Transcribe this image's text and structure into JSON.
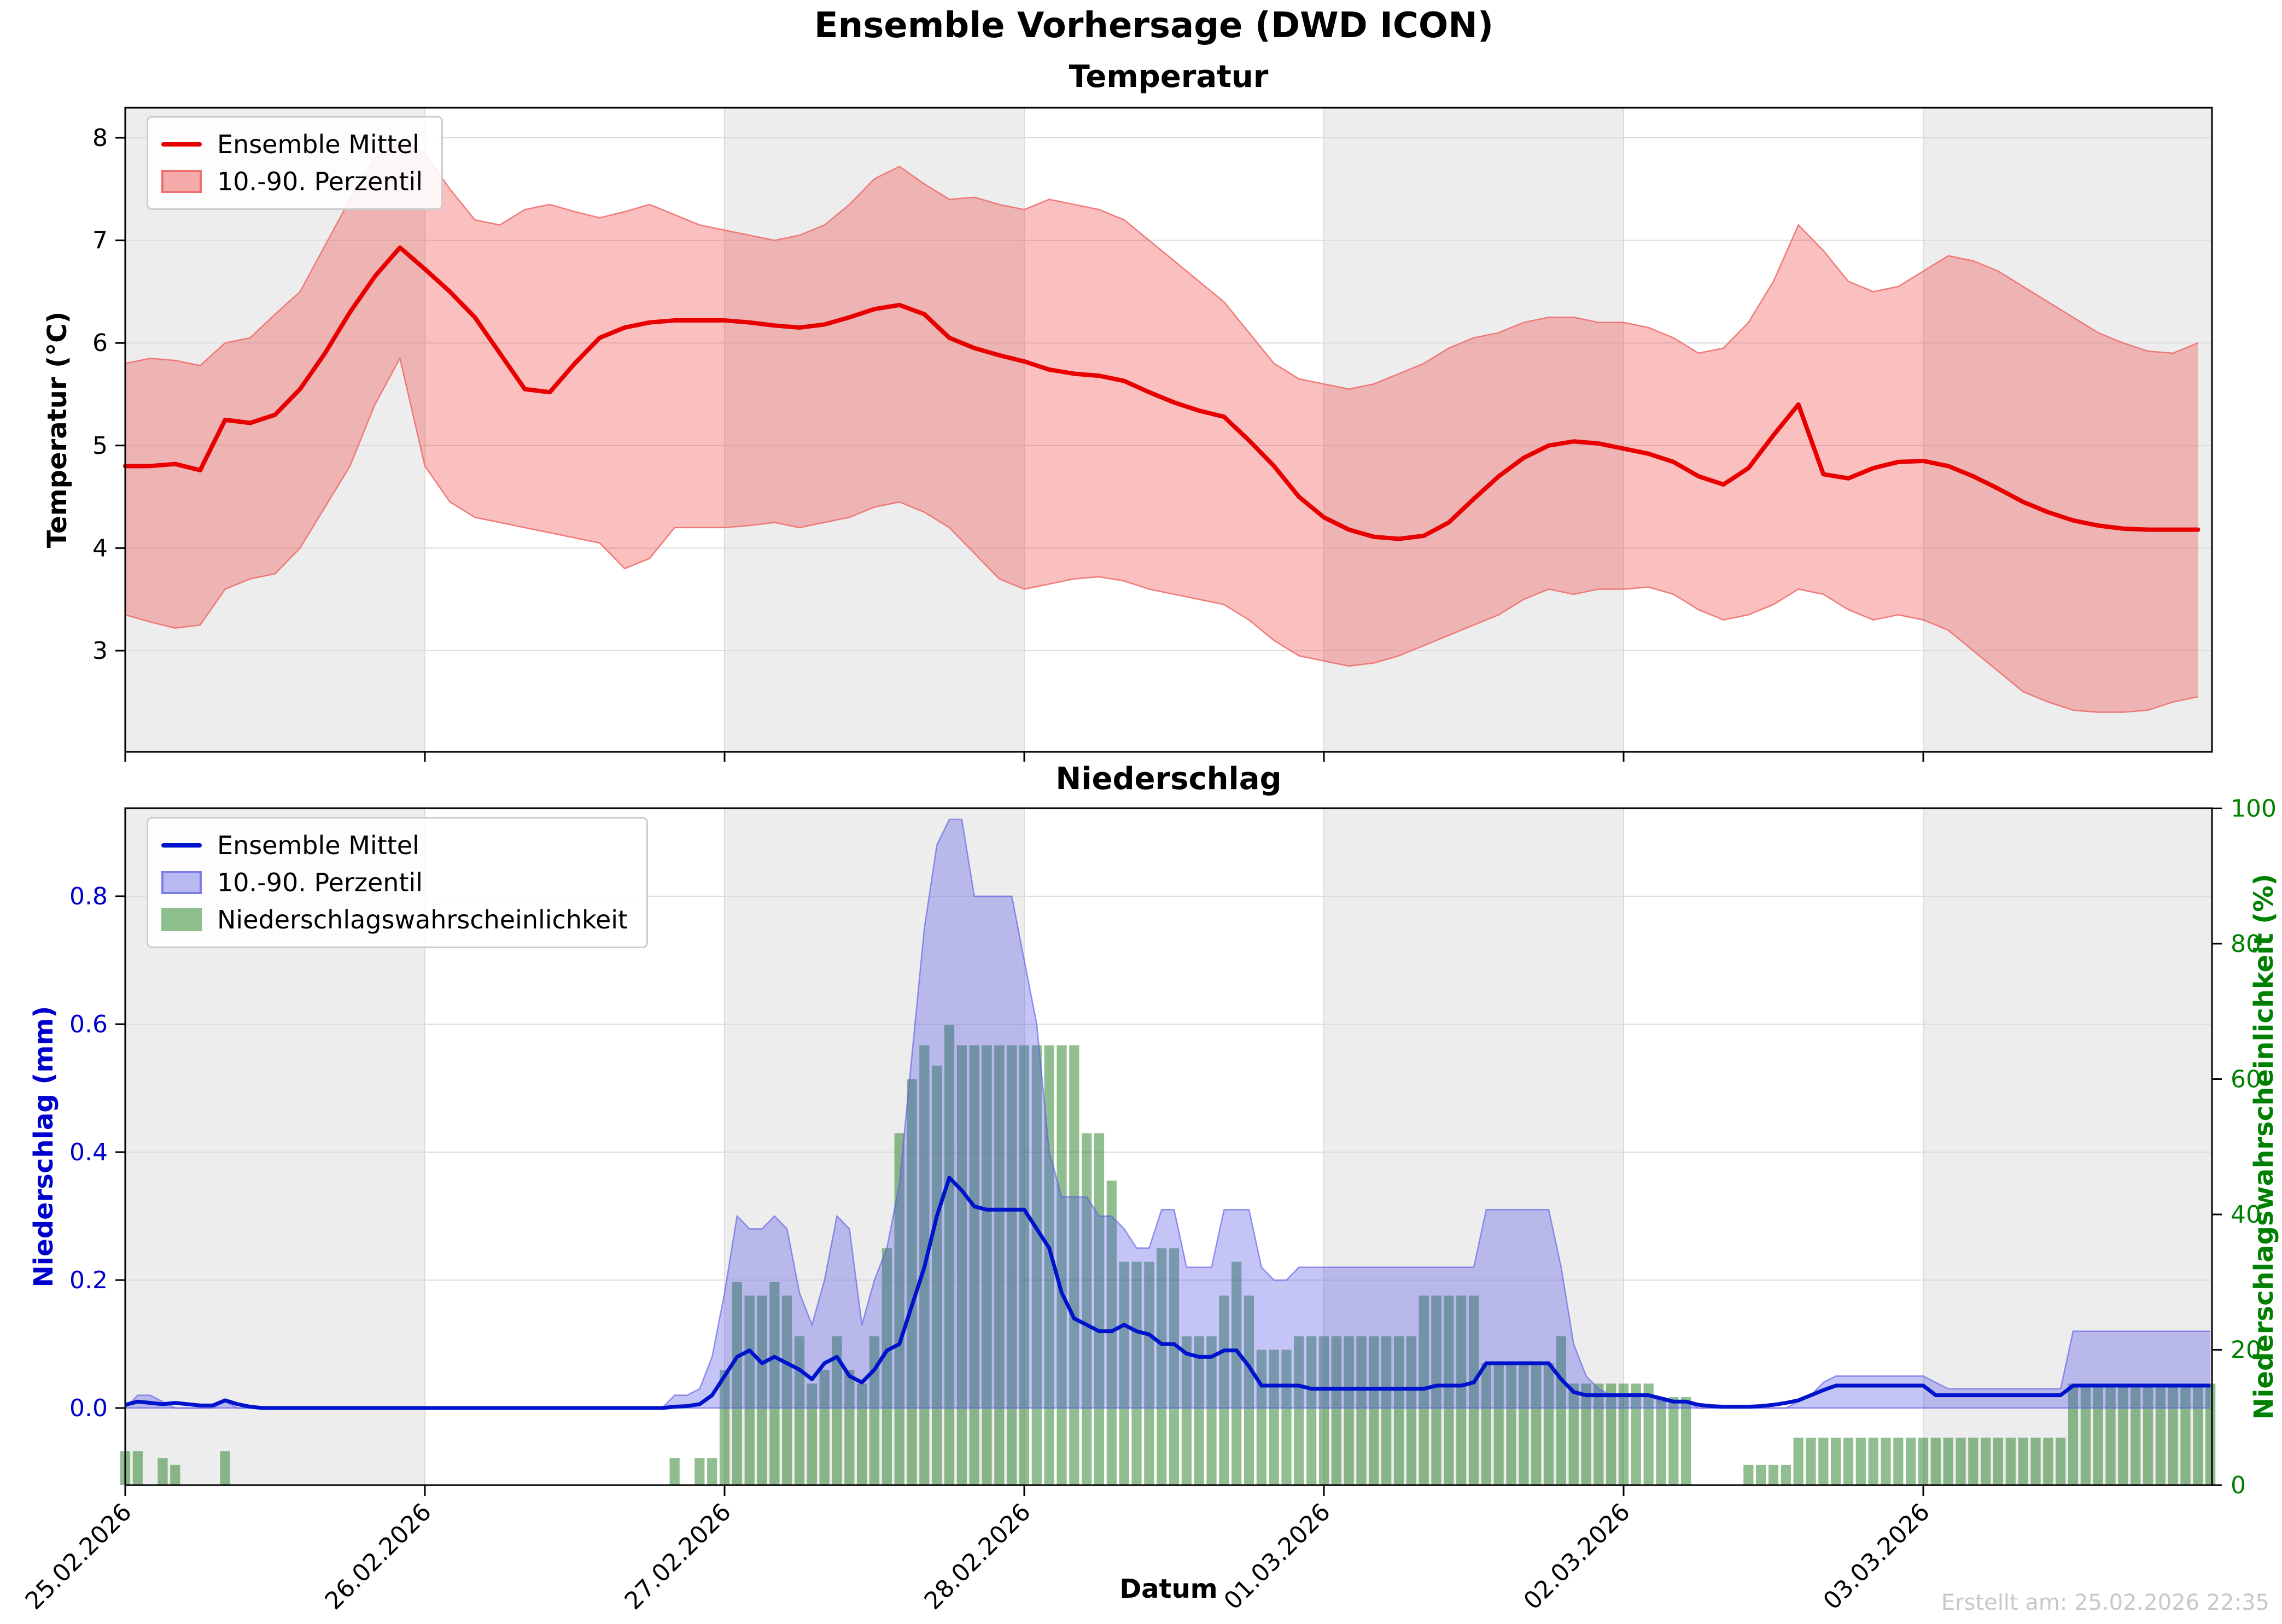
{
  "figure": {
    "suptitle": "Ensemble Vorhersage (DWD ICON)",
    "created_label": "Erstellt am: 25.02.2026 22:35",
    "xlabel": "Datum"
  },
  "colors": {
    "temp_line": "#e80000",
    "temp_band_fill": "rgba(240,60,60,0.33)",
    "temp_band_edge": "rgba(240,110,110,0.9)",
    "precip_line": "#0013cc",
    "precip_band_fill": "rgba(70,70,230,0.32)",
    "precip_band_edge": "rgba(95,95,230,0.65)",
    "prob_bar_fill": "rgba(34,125,34,0.5)",
    "day_shade": "#ededed",
    "grid": "#dcdcdc",
    "spine": "#000000",
    "left_axis2_color": "#0000cc",
    "right_axis2_color": "#008000",
    "created_color": "#c8c8c8",
    "legend_swatch_temp_fill": "#f6abab",
    "legend_swatch_temp_border": "#ef6f6f",
    "legend_swatch_precip_fill": "#b9b9f2",
    "legend_swatch_precip_border": "#7d7de8",
    "legend_swatch_prob_fill": "#8cbf8c"
  },
  "chart_data": [
    {
      "type": "line",
      "title": "Temperatur",
      "ylabel": "Temperatur (°C)",
      "legend": [
        "Ensemble Mittel",
        "10.-90. Perzentil"
      ],
      "legend_position": "upper left",
      "grid": true,
      "x_start": "25.02.2026 00:00",
      "x_step_hours": 2,
      "ylim": [
        2.01,
        8.29
      ],
      "yticks": [
        "3",
        "4",
        "5",
        "6",
        "7",
        "8"
      ],
      "ytick_values": [
        3,
        4,
        5,
        6,
        7,
        8
      ],
      "series": [
        {
          "name": "Ensemble Mittel",
          "values": [
            4.8,
            4.8,
            4.82,
            4.76,
            5.25,
            5.22,
            5.3,
            5.55,
            5.9,
            6.3,
            6.65,
            6.93,
            6.72,
            6.5,
            6.25,
            5.9,
            5.55,
            5.52,
            5.8,
            6.05,
            6.15,
            6.2,
            6.22,
            6.22,
            6.22,
            6.2,
            6.17,
            6.15,
            6.18,
            6.25,
            6.33,
            6.37,
            6.28,
            6.05,
            5.95,
            5.88,
            5.82,
            5.74,
            5.7,
            5.68,
            5.63,
            5.52,
            5.42,
            5.34,
            5.28,
            5.05,
            4.8,
            4.5,
            4.3,
            4.18,
            4.11,
            4.09,
            4.12,
            4.25,
            4.48,
            4.7,
            4.88,
            5.0,
            5.04,
            5.02,
            4.97,
            4.92,
            4.84,
            4.7,
            4.62,
            4.78,
            5.1,
            5.4,
            4.72,
            4.68,
            4.78,
            4.84,
            4.85,
            4.8,
            4.7,
            4.58,
            4.45,
            4.35,
            4.27,
            4.22,
            4.19,
            4.18,
            4.18,
            4.18
          ]
        },
        {
          "name": "10. Perzentil",
          "values": [
            3.35,
            3.28,
            3.22,
            3.25,
            3.6,
            3.7,
            3.75,
            4.0,
            4.4,
            4.8,
            5.4,
            5.85,
            4.8,
            4.45,
            4.3,
            4.25,
            4.2,
            4.15,
            4.1,
            4.05,
            3.8,
            3.9,
            4.2,
            4.2,
            4.2,
            4.22,
            4.25,
            4.2,
            4.25,
            4.3,
            4.4,
            4.45,
            4.35,
            4.2,
            3.95,
            3.7,
            3.6,
            3.65,
            3.7,
            3.72,
            3.68,
            3.6,
            3.55,
            3.5,
            3.45,
            3.3,
            3.1,
            2.95,
            2.9,
            2.85,
            2.88,
            2.95,
            3.05,
            3.15,
            3.25,
            3.35,
            3.5,
            3.6,
            3.55,
            3.6,
            3.6,
            3.62,
            3.55,
            3.4,
            3.3,
            3.35,
            3.45,
            3.6,
            3.55,
            3.4,
            3.3,
            3.35,
            3.3,
            3.2,
            3.0,
            2.8,
            2.6,
            2.5,
            2.42,
            2.4,
            2.4,
            2.42,
            2.5,
            2.55
          ]
        },
        {
          "name": "90. Perzentil",
          "values": [
            5.8,
            5.85,
            5.83,
            5.78,
            6.0,
            6.05,
            6.28,
            6.5,
            6.95,
            7.4,
            7.8,
            7.95,
            7.85,
            7.5,
            7.2,
            7.15,
            7.3,
            7.35,
            7.28,
            7.22,
            7.28,
            7.35,
            7.25,
            7.15,
            7.1,
            7.05,
            7.0,
            7.05,
            7.15,
            7.35,
            7.6,
            7.72,
            7.55,
            7.4,
            7.42,
            7.35,
            7.3,
            7.4,
            7.35,
            7.3,
            7.2,
            7.0,
            6.8,
            6.6,
            6.4,
            6.1,
            5.8,
            5.65,
            5.6,
            5.55,
            5.6,
            5.7,
            5.8,
            5.95,
            6.05,
            6.1,
            6.2,
            6.25,
            6.25,
            6.2,
            6.2,
            6.15,
            6.05,
            5.9,
            5.95,
            6.2,
            6.6,
            7.15,
            6.9,
            6.6,
            6.5,
            6.55,
            6.7,
            6.85,
            6.8,
            6.7,
            6.55,
            6.4,
            6.25,
            6.1,
            6.0,
            5.92,
            5.9,
            6.0
          ]
        }
      ]
    },
    {
      "type": "bar",
      "title": "Niederschlag",
      "xlabel": "Datum",
      "ylabel_left": "Niederschlag (mm)",
      "ylabel_right": "Niederschlagswahrscheinlichkeit (%)",
      "legend": [
        "Ensemble Mittel",
        "10.-90. Perzentil",
        "Niederschlagswahrscheinlichkeit"
      ],
      "legend_position": "upper left",
      "grid": true,
      "x_start": "25.02.2026 00:00",
      "x_step_hours": 1,
      "ylim_left": [
        -0.12,
        0.938
      ],
      "ylim_right": [
        0,
        100
      ],
      "yticks_left": [
        "0.0",
        "0.2",
        "0.4",
        "0.6",
        "0.8"
      ],
      "ytick_values_left": [
        0.0,
        0.2,
        0.4,
        0.6,
        0.8
      ],
      "yticks_right": [
        "0",
        "20",
        "40",
        "60",
        "80",
        "100"
      ],
      "ytick_values_right": [
        0,
        20,
        40,
        60,
        80,
        100
      ],
      "categories": [
        "25.02.2026",
        "26.02.2026",
        "27.02.2026",
        "28.02.2026",
        "01.03.2026",
        "02.03.2026",
        "03.03.2026"
      ],
      "mean_mm": [
        0.005,
        0.01,
        0.008,
        0.006,
        0.008,
        0.006,
        0.004,
        0.004,
        0.012,
        0.006,
        0.002,
        0,
        0,
        0,
        0,
        0,
        0,
        0,
        0,
        0,
        0,
        0,
        0,
        0,
        0,
        0,
        0,
        0,
        0,
        0,
        0,
        0,
        0,
        0,
        0,
        0,
        0,
        0,
        0,
        0,
        0,
        0,
        0,
        0,
        0.002,
        0.003,
        0.006,
        0.02,
        0.05,
        0.08,
        0.09,
        0.07,
        0.08,
        0.07,
        0.06,
        0.045,
        0.07,
        0.08,
        0.05,
        0.04,
        0.06,
        0.09,
        0.1,
        0.16,
        0.22,
        0.3,
        0.36,
        0.34,
        0.315,
        0.31,
        0.31,
        0.31,
        0.31,
        0.28,
        0.25,
        0.18,
        0.14,
        0.13,
        0.12,
        0.12,
        0.13,
        0.12,
        0.115,
        0.1,
        0.1,
        0.085,
        0.08,
        0.08,
        0.09,
        0.09,
        0.065,
        0.035,
        0.035,
        0.035,
        0.035,
        0.03,
        0.03,
        0.03,
        0.03,
        0.03,
        0.03,
        0.03,
        0.03,
        0.03,
        0.03,
        0.035,
        0.035,
        0.035,
        0.04,
        0.07,
        0.07,
        0.07,
        0.07,
        0.07,
        0.07,
        0.045,
        0.025,
        0.02,
        0.02,
        0.02,
        0.02,
        0.02,
        0.02,
        0.015,
        0.01,
        0.01,
        0.005,
        0.003,
        0.002,
        0.002,
        0.002,
        0.003,
        0.005,
        0.008,
        0.012,
        0.02,
        0.028,
        0.035,
        0.035,
        0.035,
        0.035,
        0.035,
        0.035,
        0.035,
        0.035,
        0.02,
        0.02,
        0.02,
        0.02,
        0.02,
        0.02,
        0.02,
        0.02,
        0.02,
        0.02,
        0.02,
        0.035,
        0.035,
        0.035,
        0.035,
        0.035,
        0.035,
        0.035,
        0.035,
        0.035,
        0.035,
        0.035,
        0.035
      ],
      "band_upper_mm": [
        0,
        0.02,
        0.02,
        0.01,
        0,
        0,
        0,
        0,
        0.01,
        0,
        0,
        0,
        0,
        0,
        0,
        0,
        0,
        0,
        0,
        0,
        0,
        0,
        0,
        0,
        0,
        0,
        0,
        0,
        0,
        0,
        0,
        0,
        0,
        0,
        0,
        0,
        0,
        0,
        0,
        0,
        0,
        0,
        0,
        0,
        0.02,
        0.02,
        0.03,
        0.08,
        0.18,
        0.3,
        0.28,
        0.28,
        0.3,
        0.28,
        0.18,
        0.13,
        0.2,
        0.3,
        0.28,
        0.13,
        0.2,
        0.25,
        0.35,
        0.55,
        0.75,
        0.88,
        0.92,
        0.92,
        0.8,
        0.8,
        0.8,
        0.8,
        0.7,
        0.6,
        0.4,
        0.33,
        0.33,
        0.33,
        0.3,
        0.3,
        0.28,
        0.25,
        0.25,
        0.31,
        0.31,
        0.22,
        0.22,
        0.22,
        0.31,
        0.31,
        0.31,
        0.22,
        0.2,
        0.2,
        0.22,
        0.22,
        0.22,
        0.22,
        0.22,
        0.22,
        0.22,
        0.22,
        0.22,
        0.22,
        0.22,
        0.22,
        0.22,
        0.22,
        0.22,
        0.31,
        0.31,
        0.31,
        0.31,
        0.31,
        0.31,
        0.22,
        0.1,
        0.05,
        0.03,
        0.02,
        0.02,
        0.02,
        0.02,
        0.01,
        0.01,
        0.01,
        0,
        0,
        0,
        0,
        0,
        0,
        0,
        0,
        0.01,
        0.02,
        0.04,
        0.05,
        0.05,
        0.05,
        0.05,
        0.05,
        0.05,
        0.05,
        0.05,
        0.04,
        0.03,
        0.03,
        0.03,
        0.03,
        0.03,
        0.03,
        0.03,
        0.03,
        0.03,
        0.03,
        0.12,
        0.12,
        0.12,
        0.12,
        0.12,
        0.12,
        0.12,
        0.12,
        0.12,
        0.12,
        0.12,
        0.12
      ],
      "band_lower_mm": 0,
      "prob_pct": [
        5,
        5,
        0,
        4,
        3,
        0,
        0,
        0,
        5,
        0,
        0,
        0,
        0,
        0,
        0,
        0,
        0,
        0,
        0,
        0,
        0,
        0,
        0,
        0,
        0,
        0,
        0,
        0,
        0,
        0,
        0,
        0,
        0,
        0,
        0,
        0,
        0,
        0,
        0,
        0,
        0,
        0,
        0,
        0,
        4,
        0,
        4,
        4,
        17,
        30,
        28,
        28,
        30,
        28,
        22,
        15,
        17,
        22,
        17,
        15,
        22,
        35,
        52,
        60,
        65,
        62,
        68,
        65,
        65,
        65,
        65,
        65,
        65,
        65,
        65,
        65,
        65,
        52,
        52,
        45,
        33,
        33,
        33,
        35,
        35,
        22,
        22,
        22,
        28,
        33,
        28,
        20,
        20,
        20,
        22,
        22,
        22,
        22,
        22,
        22,
        22,
        22,
        22,
        22,
        28,
        28,
        28,
        28,
        28,
        18,
        18,
        18,
        18,
        18,
        18,
        22,
        15,
        15,
        15,
        15,
        15,
        15,
        15,
        13,
        13,
        13,
        0,
        0,
        0,
        0,
        3,
        3,
        3,
        3,
        7,
        7,
        7,
        7,
        7,
        7,
        7,
        7,
        7,
        7,
        7,
        7,
        7,
        7,
        7,
        7,
        7,
        7,
        7,
        7,
        7,
        7,
        15,
        15,
        15,
        15,
        15,
        15,
        15,
        15,
        15,
        15,
        15,
        15
      ]
    }
  ]
}
